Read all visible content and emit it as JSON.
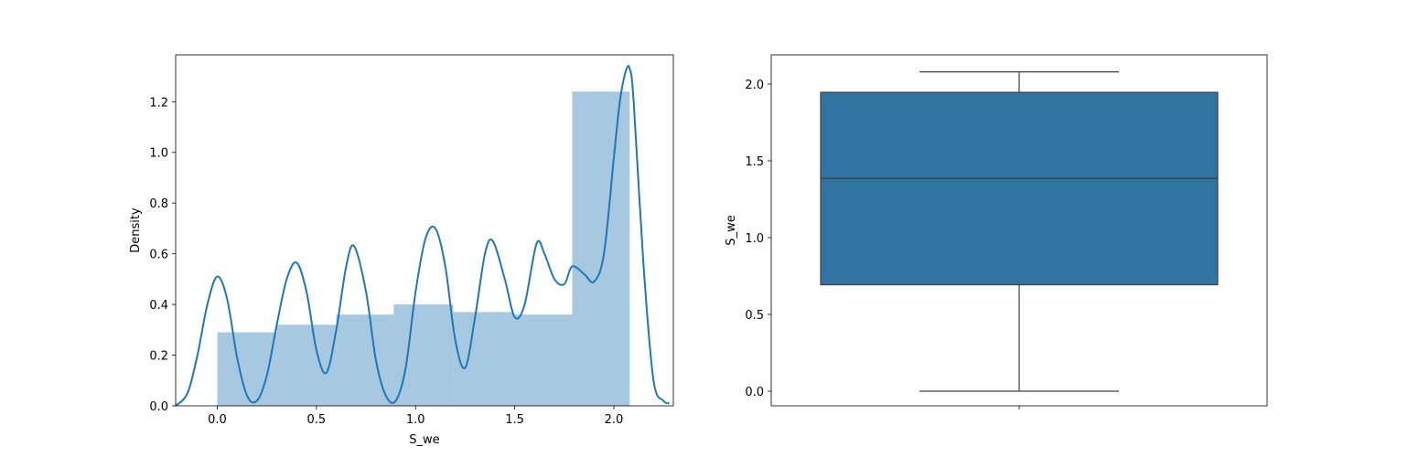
{
  "chart_data": [
    {
      "type": "histogram",
      "xlabel": "S_we",
      "ylabel": "Density",
      "xlim": [
        -0.21,
        2.3
      ],
      "ylim": [
        0,
        1.385
      ],
      "xticks": [
        0.0,
        0.5,
        1.0,
        1.5,
        2.0
      ],
      "yticks": [
        0.0,
        0.2,
        0.4,
        0.6,
        0.8,
        1.0,
        1.2
      ],
      "bin_edges": [
        0.0,
        0.3,
        0.6,
        0.89,
        1.19,
        1.49,
        1.79,
        2.08
      ],
      "bin_density": [
        0.29,
        0.32,
        0.36,
        0.4,
        0.37,
        0.36,
        1.24
      ],
      "bar_color": "#a6c8e0",
      "kde_color": "#1f77b4",
      "kde": {
        "x": [
          -0.21,
          -0.15,
          -0.1,
          -0.05,
          0.0,
          0.05,
          0.1,
          0.15,
          0.2,
          0.25,
          0.3,
          0.35,
          0.4,
          0.45,
          0.5,
          0.55,
          0.6,
          0.65,
          0.69,
          0.75,
          0.8,
          0.85,
          0.9,
          0.95,
          1.0,
          1.05,
          1.1,
          1.15,
          1.2,
          1.25,
          1.3,
          1.35,
          1.39,
          1.45,
          1.5,
          1.55,
          1.61,
          1.65,
          1.7,
          1.75,
          1.79,
          1.85,
          1.9,
          1.95,
          2.0,
          2.03,
          2.06,
          2.08,
          2.1,
          2.15,
          2.2,
          2.25,
          2.28
        ],
        "y": [
          0.0,
          0.05,
          0.2,
          0.4,
          0.51,
          0.42,
          0.19,
          0.04,
          0.02,
          0.12,
          0.32,
          0.5,
          0.565,
          0.45,
          0.22,
          0.13,
          0.3,
          0.55,
          0.63,
          0.45,
          0.18,
          0.04,
          0.02,
          0.15,
          0.45,
          0.66,
          0.7,
          0.55,
          0.26,
          0.15,
          0.35,
          0.6,
          0.65,
          0.5,
          0.35,
          0.4,
          0.64,
          0.6,
          0.5,
          0.48,
          0.55,
          0.52,
          0.49,
          0.6,
          0.98,
          1.2,
          1.32,
          1.33,
          1.2,
          0.55,
          0.1,
          0.02,
          0.01
        ]
      }
    },
    {
      "type": "box",
      "ylabel": "S_we",
      "ylim": [
        -0.095,
        2.19
      ],
      "yticks": [
        0.0,
        0.5,
        1.0,
        1.5,
        2.0
      ],
      "whisker_low": 0.0,
      "q1": 0.693,
      "median": 1.386,
      "q3": 1.946,
      "whisker_high": 2.079,
      "box_color": "#3274a1"
    }
  ]
}
